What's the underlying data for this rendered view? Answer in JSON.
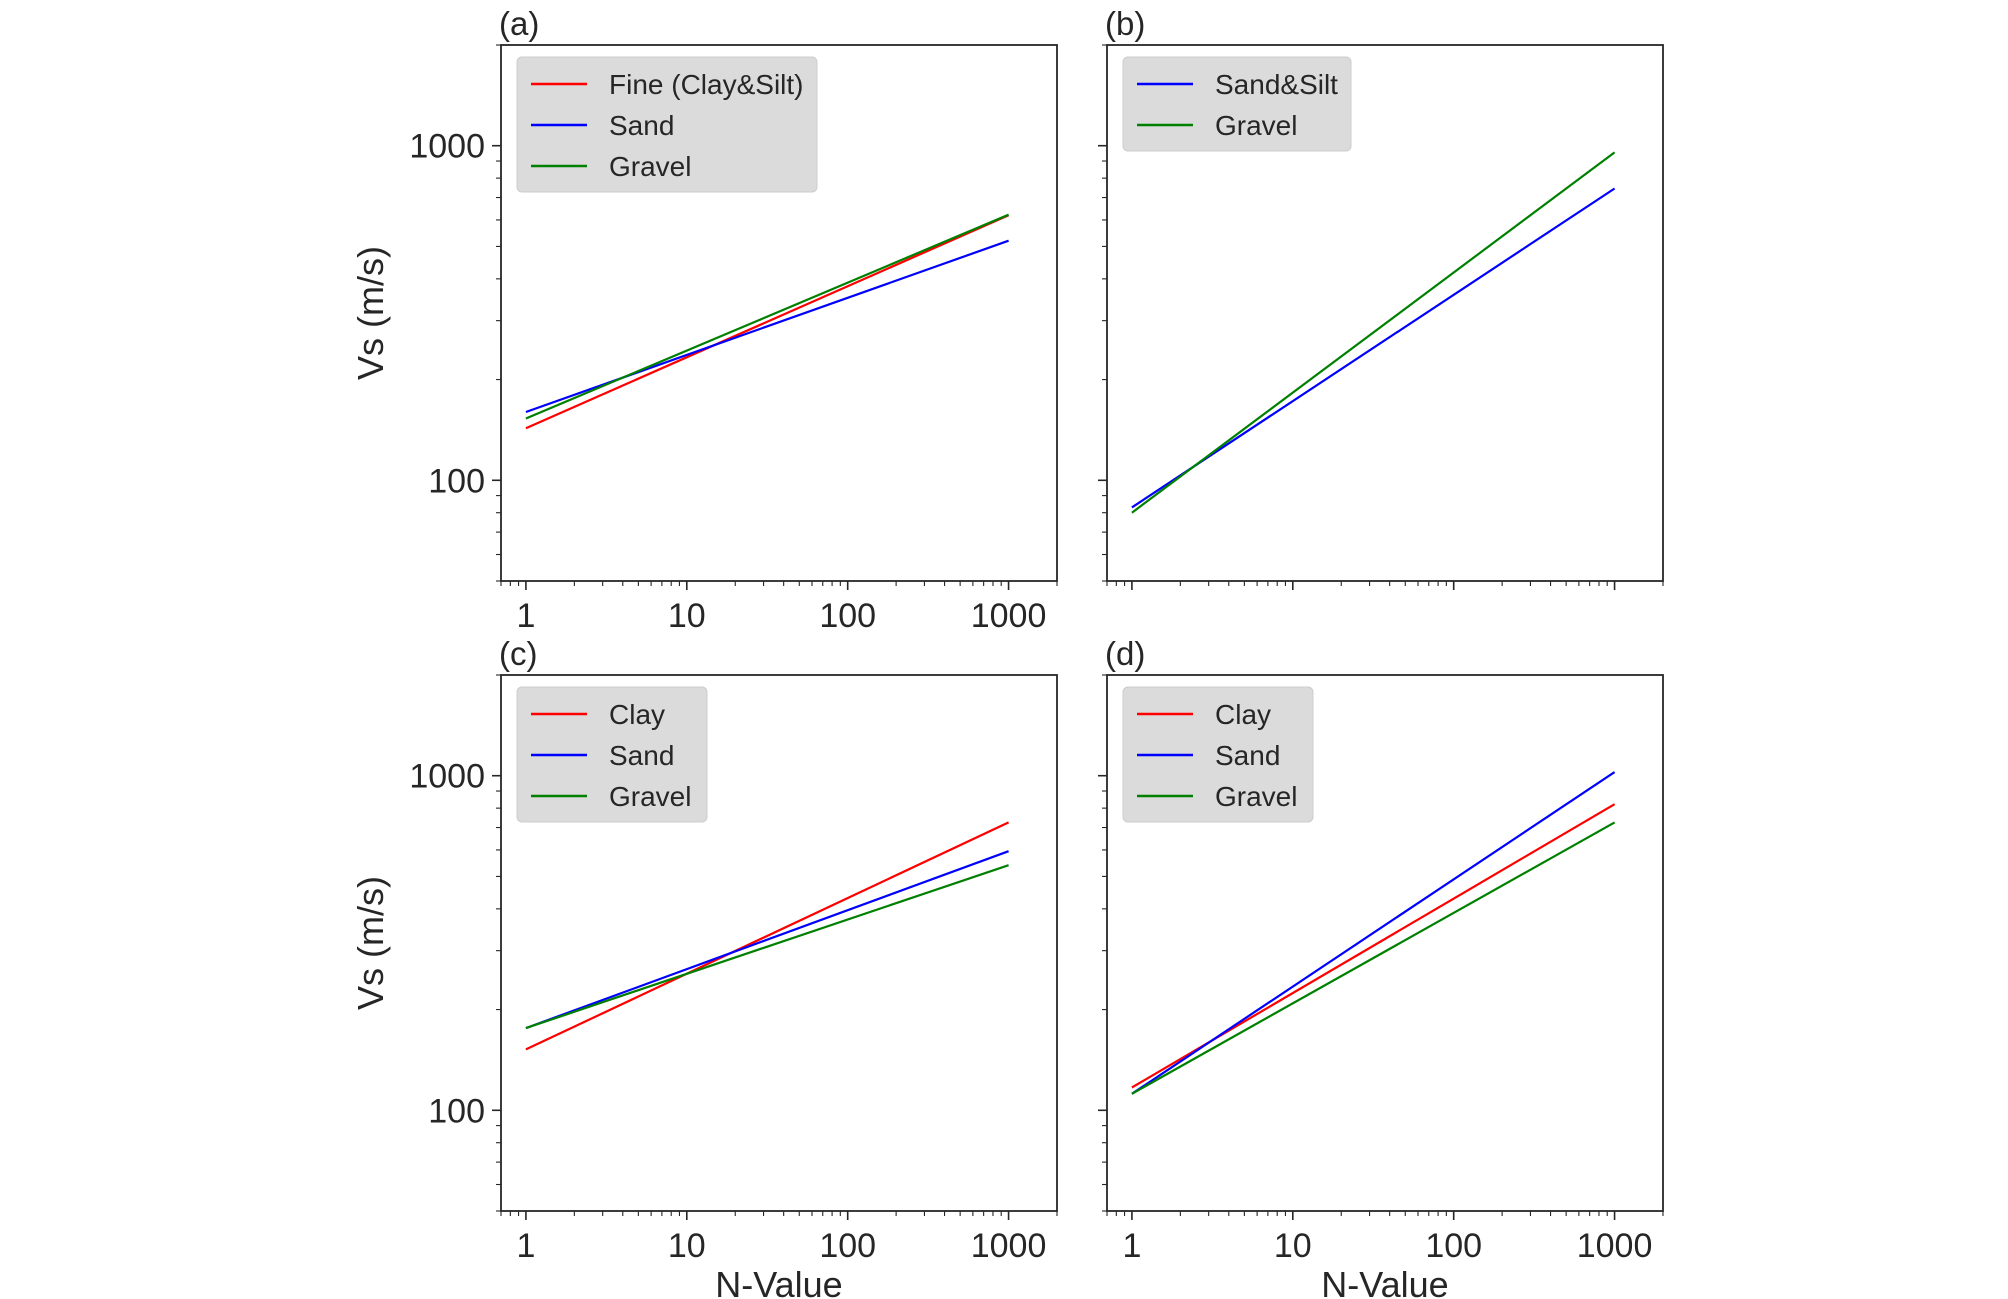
{
  "chart_data": [
    {
      "type": "line",
      "panel_label": "(a)",
      "x_scale": "log",
      "y_scale": "log",
      "xlim": [
        0.7,
        2000
      ],
      "ylim": [
        50,
        2000
      ],
      "xticks": [
        1,
        10,
        100,
        1000
      ],
      "xtick_labels": [
        "1",
        "10",
        "100",
        "1000"
      ],
      "yticks": [
        100,
        1000
      ],
      "ytick_labels": [
        "100",
        "1000"
      ],
      "xlabel": "",
      "ylabel": "Vs (m/s)",
      "legend": "top-left",
      "series": [
        {
          "name": "Fine (Clay&Silt)",
          "color": "#ff0000",
          "x": [
            1,
            1000
          ],
          "y": [
            143,
            620
          ]
        },
        {
          "name": "Sand",
          "color": "#0000ff",
          "x": [
            1,
            1000
          ],
          "y": [
            160,
            520
          ]
        },
        {
          "name": "Gravel",
          "color": "#008000",
          "x": [
            1,
            1000
          ],
          "y": [
            153,
            622
          ]
        }
      ]
    },
    {
      "type": "line",
      "panel_label": "(b)",
      "x_scale": "log",
      "y_scale": "log",
      "xlim": [
        0.7,
        2000
      ],
      "ylim": [
        50,
        2000
      ],
      "xticks": [
        1,
        10,
        100,
        1000
      ],
      "xtick_labels": [],
      "yticks": [
        100,
        1000
      ],
      "ytick_labels": [],
      "xlabel": "",
      "ylabel": "",
      "legend": "top-left",
      "series": [
        {
          "name": "Sand&Silt",
          "color": "#0000ff",
          "x": [
            1,
            1000
          ],
          "y": [
            83,
            745
          ]
        },
        {
          "name": "Gravel",
          "color": "#008000",
          "x": [
            1,
            1000
          ],
          "y": [
            80,
            955
          ]
        }
      ]
    },
    {
      "type": "line",
      "panel_label": "(c)",
      "x_scale": "log",
      "y_scale": "log",
      "xlim": [
        0.7,
        2000
      ],
      "ylim": [
        50,
        2000
      ],
      "xticks": [
        1,
        10,
        100,
        1000
      ],
      "xtick_labels": [
        "1",
        "10",
        "100",
        "1000"
      ],
      "yticks": [
        100,
        1000
      ],
      "ytick_labels": [
        "100",
        "1000"
      ],
      "xlabel": "N-Value",
      "ylabel": "Vs (m/s)",
      "legend": "top-left",
      "series": [
        {
          "name": "Clay",
          "color": "#ff0000",
          "x": [
            1,
            1000
          ],
          "y": [
            152,
            725
          ]
        },
        {
          "name": "Sand",
          "color": "#0000ff",
          "x": [
            1,
            1000
          ],
          "y": [
            176,
            595
          ]
        },
        {
          "name": "Gravel",
          "color": "#008000",
          "x": [
            1,
            1000
          ],
          "y": [
            176,
            540
          ]
        }
      ]
    },
    {
      "type": "line",
      "panel_label": "(d)",
      "x_scale": "log",
      "y_scale": "log",
      "xlim": [
        0.7,
        2000
      ],
      "ylim": [
        50,
        2000
      ],
      "xticks": [
        1,
        10,
        100,
        1000
      ],
      "xtick_labels": [
        "1",
        "10",
        "100",
        "1000"
      ],
      "yticks": [
        100,
        1000
      ],
      "ytick_labels": [],
      "xlabel": "N-Value",
      "ylabel": "",
      "legend": "top-left",
      "series": [
        {
          "name": "Clay",
          "color": "#ff0000",
          "x": [
            1,
            1000
          ],
          "y": [
            117,
            822
          ]
        },
        {
          "name": "Sand",
          "color": "#0000ff",
          "x": [
            1,
            1000
          ],
          "y": [
            112,
            1025
          ]
        },
        {
          "name": "Gravel",
          "color": "#008000",
          "x": [
            1,
            1000
          ],
          "y": [
            112,
            725
          ]
        }
      ]
    }
  ]
}
